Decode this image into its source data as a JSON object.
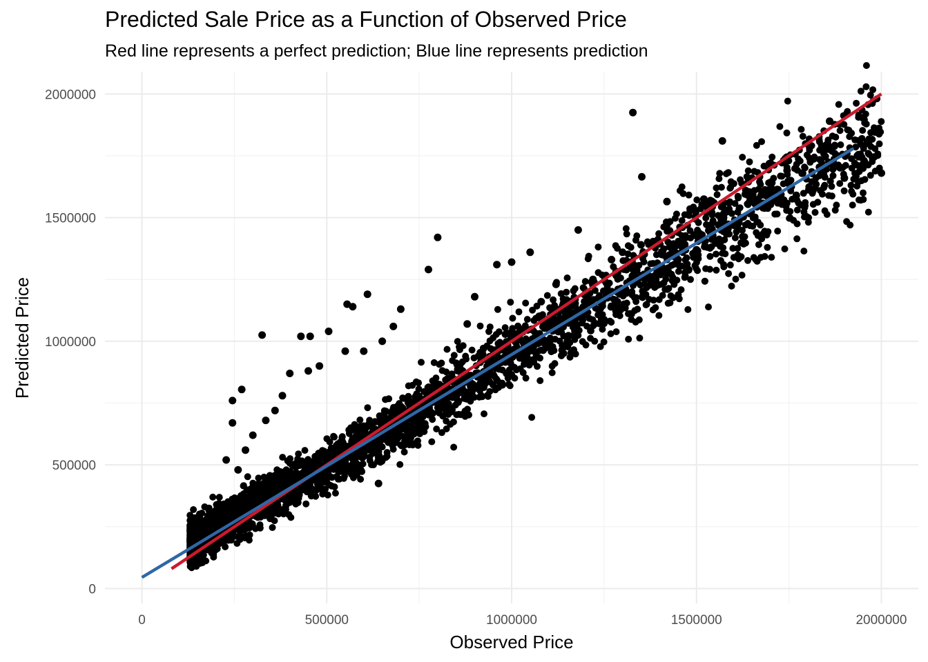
{
  "chart_data": {
    "type": "scatter",
    "title": "Predicted Sale Price as a Function of Observed Price",
    "subtitle": "Red line represents a perfect prediction; Blue line represents prediction",
    "xlabel": "Observed Price",
    "ylabel": "Predicted Price",
    "xlim": [
      -100000,
      2100000
    ],
    "ylim": [
      -60000,
      2090000
    ],
    "x_ticks": [
      0,
      500000,
      1000000,
      1500000,
      2000000
    ],
    "y_ticks": [
      0,
      500000,
      1000000,
      1500000,
      2000000
    ],
    "x_tick_labels": [
      "0",
      "500000",
      "1000000",
      "1500000",
      "2000000"
    ],
    "y_tick_labels": [
      "0",
      "500000",
      "1000000",
      "1500000",
      "2000000"
    ],
    "grid": true,
    "legend": "none",
    "series": [
      {
        "kind": "points",
        "color": "#000000",
        "points": [
          [
            1328000,
            1925000
          ],
          [
            1860000,
            1890000
          ],
          [
            1570000,
            1810000
          ],
          [
            1980000,
            1745000
          ],
          [
            1700000,
            1720000
          ],
          [
            1745000,
            1690000
          ],
          [
            1640000,
            1645000
          ],
          [
            1352000,
            1665000
          ],
          [
            1420000,
            1565000
          ],
          [
            1520000,
            1575000
          ],
          [
            1500000,
            1370000
          ],
          [
            1350000,
            1390000
          ],
          [
            1180000,
            1450000
          ],
          [
            1050000,
            1360000
          ],
          [
            1000000,
            1320000
          ],
          [
            960000,
            1310000
          ],
          [
            800000,
            1420000
          ],
          [
            775000,
            1290000
          ],
          [
            610000,
            1190000
          ],
          [
            570000,
            1140000
          ],
          [
            555000,
            1150000
          ],
          [
            505000,
            1040000
          ],
          [
            455000,
            1020000
          ],
          [
            430000,
            1020000
          ],
          [
            325000,
            1025000
          ],
          [
            270000,
            805000
          ],
          [
            245000,
            760000
          ],
          [
            245000,
            670000
          ],
          [
            228000,
            520000
          ],
          [
            640000,
            425000
          ],
          [
            1935000,
            1750000
          ],
          [
            1950000,
            1700000
          ],
          [
            2000000,
            1680000
          ],
          [
            1900000,
            1660000
          ],
          [
            1815000,
            1610000
          ],
          [
            1770000,
            1590000
          ],
          [
            1720000,
            1560000
          ],
          [
            1680000,
            1540000
          ],
          [
            1620000,
            1500000
          ],
          [
            1560000,
            1470000
          ],
          [
            1470000,
            1420000
          ],
          [
            1450000,
            1330000
          ],
          [
            1400000,
            1300000
          ],
          [
            1300000,
            1360000
          ],
          [
            1270000,
            1330000
          ],
          [
            1220000,
            1250000
          ],
          [
            1120000,
            1230000
          ],
          [
            1080000,
            1160000
          ],
          [
            900000,
            1180000
          ],
          [
            880000,
            1070000
          ],
          [
            700000,
            1130000
          ],
          [
            680000,
            1060000
          ],
          [
            650000,
            1000000
          ],
          [
            600000,
            960000
          ],
          [
            550000,
            960000
          ],
          [
            480000,
            900000
          ],
          [
            450000,
            880000
          ],
          [
            400000,
            870000
          ],
          [
            380000,
            780000
          ],
          [
            360000,
            720000
          ],
          [
            335000,
            680000
          ],
          [
            300000,
            620000
          ],
          [
            280000,
            560000
          ],
          [
            260000,
            480000
          ]
        ]
      },
      {
        "kind": "line",
        "name": "Red line",
        "color": "#CB1A2C",
        "x": [
          80000,
          2000000
        ],
        "y": [
          80000,
          2000000
        ]
      },
      {
        "kind": "line",
        "name": "Blue line",
        "color": "#2F67A6",
        "x": [
          0,
          1925000
        ],
        "y": [
          45000,
          1780000
        ]
      }
    ]
  }
}
